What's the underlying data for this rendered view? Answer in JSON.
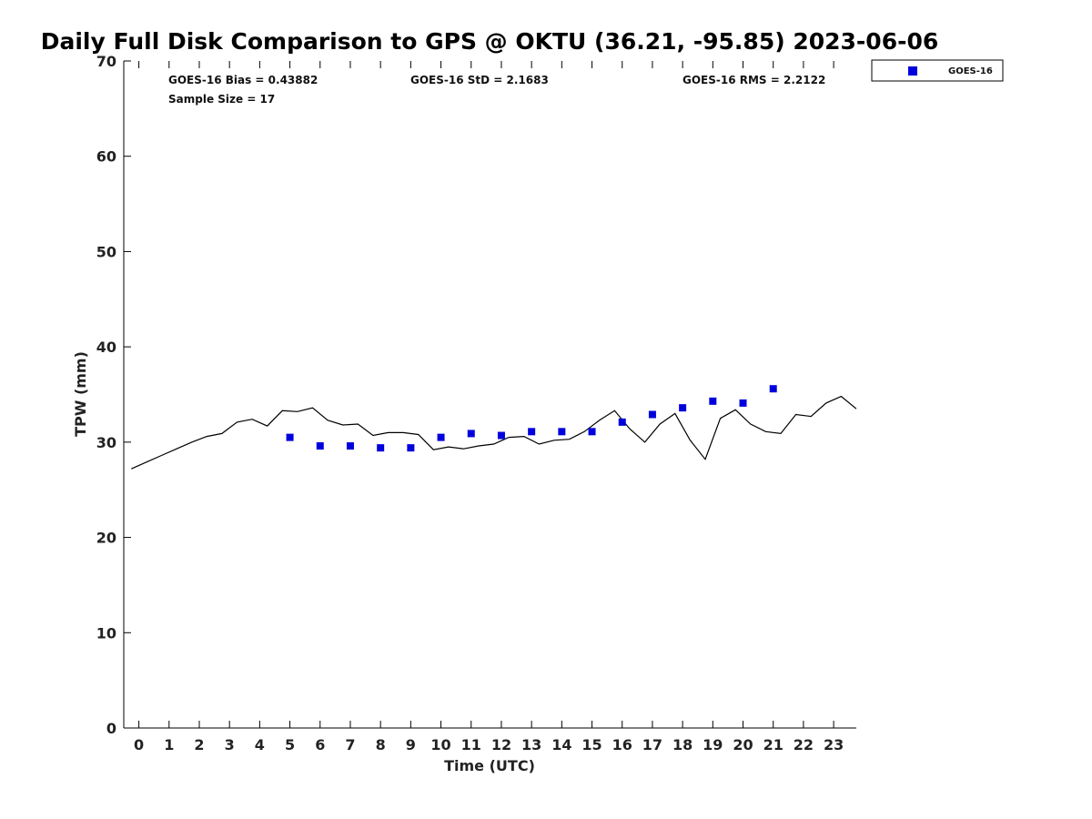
{
  "chart_data": {
    "type": "scatter",
    "title": "Daily Full Disk Comparison to GPS @ OKTU (36.21, -95.85) 2023-06-06",
    "xlabel": "Time (UTC)",
    "ylabel": "TPW (mm)",
    "xlim": [
      -0.5,
      23.75
    ],
    "ylim": [
      0,
      70
    ],
    "xticks": [
      "0",
      "1",
      "2",
      "3",
      "4",
      "5",
      "6",
      "7",
      "8",
      "9",
      "10",
      "11",
      "12",
      "13",
      "14",
      "15",
      "16",
      "17",
      "18",
      "19",
      "20",
      "21",
      "22",
      "23"
    ],
    "yticks": [
      "0",
      "10",
      "20",
      "30",
      "40",
      "50",
      "60",
      "70"
    ],
    "grid": false,
    "legend_position": "top-right (outside plot)",
    "stats": {
      "bias": "GOES-16 Bias = 0.43882",
      "std": "GOES-16 StD = 2.1683",
      "rms": "GOES-16 RMS = 2.2122",
      "sample": "Sample Size = 17"
    },
    "gps_line": {
      "color": "#000000",
      "x": [
        -0.25,
        0.25,
        0.75,
        1.25,
        1.75,
        2.25,
        2.75,
        3.25,
        3.75,
        4.25,
        4.75,
        5.25,
        5.75,
        6.25,
        6.75,
        7.25,
        7.75,
        8.25,
        8.75,
        9.25,
        9.75,
        10.25,
        10.75,
        11.25,
        11.75,
        12.25,
        12.75,
        13.25,
        13.75,
        14.25,
        14.75,
        15.25,
        15.75,
        16.25,
        16.75,
        17.25,
        17.75,
        18.25,
        18.75,
        19.25,
        19.75,
        20.25,
        20.75,
        21.25,
        21.75,
        22.25,
        22.75,
        23.25,
        23.75
      ],
      "y": [
        27.2,
        27.9,
        28.6,
        29.3,
        30.0,
        30.6,
        30.9,
        32.1,
        32.4,
        31.7,
        33.3,
        33.2,
        33.6,
        32.3,
        31.8,
        31.9,
        30.7,
        31.0,
        31.0,
        30.8,
        29.2,
        29.5,
        29.3,
        29.6,
        29.8,
        30.5,
        30.6,
        29.8,
        30.2,
        30.3,
        31.1,
        32.3,
        33.3,
        31.4,
        30.0,
        31.9,
        33.0,
        30.2,
        28.2,
        32.5,
        33.4,
        31.9,
        31.1,
        30.9,
        32.9,
        32.7,
        34.1,
        34.8,
        33.5
      ]
    },
    "series": [
      {
        "name": "GOES-16",
        "color": "#0000dd",
        "x": [
          5,
          6,
          7,
          8,
          9,
          10,
          11,
          12,
          13,
          14,
          15,
          16,
          17,
          18,
          19,
          20,
          21
        ],
        "y": [
          30.5,
          29.6,
          29.6,
          29.4,
          29.4,
          30.5,
          30.9,
          30.7,
          31.1,
          31.1,
          31.1,
          32.1,
          32.9,
          33.6,
          34.3,
          34.1,
          35.6
        ]
      }
    ]
  }
}
